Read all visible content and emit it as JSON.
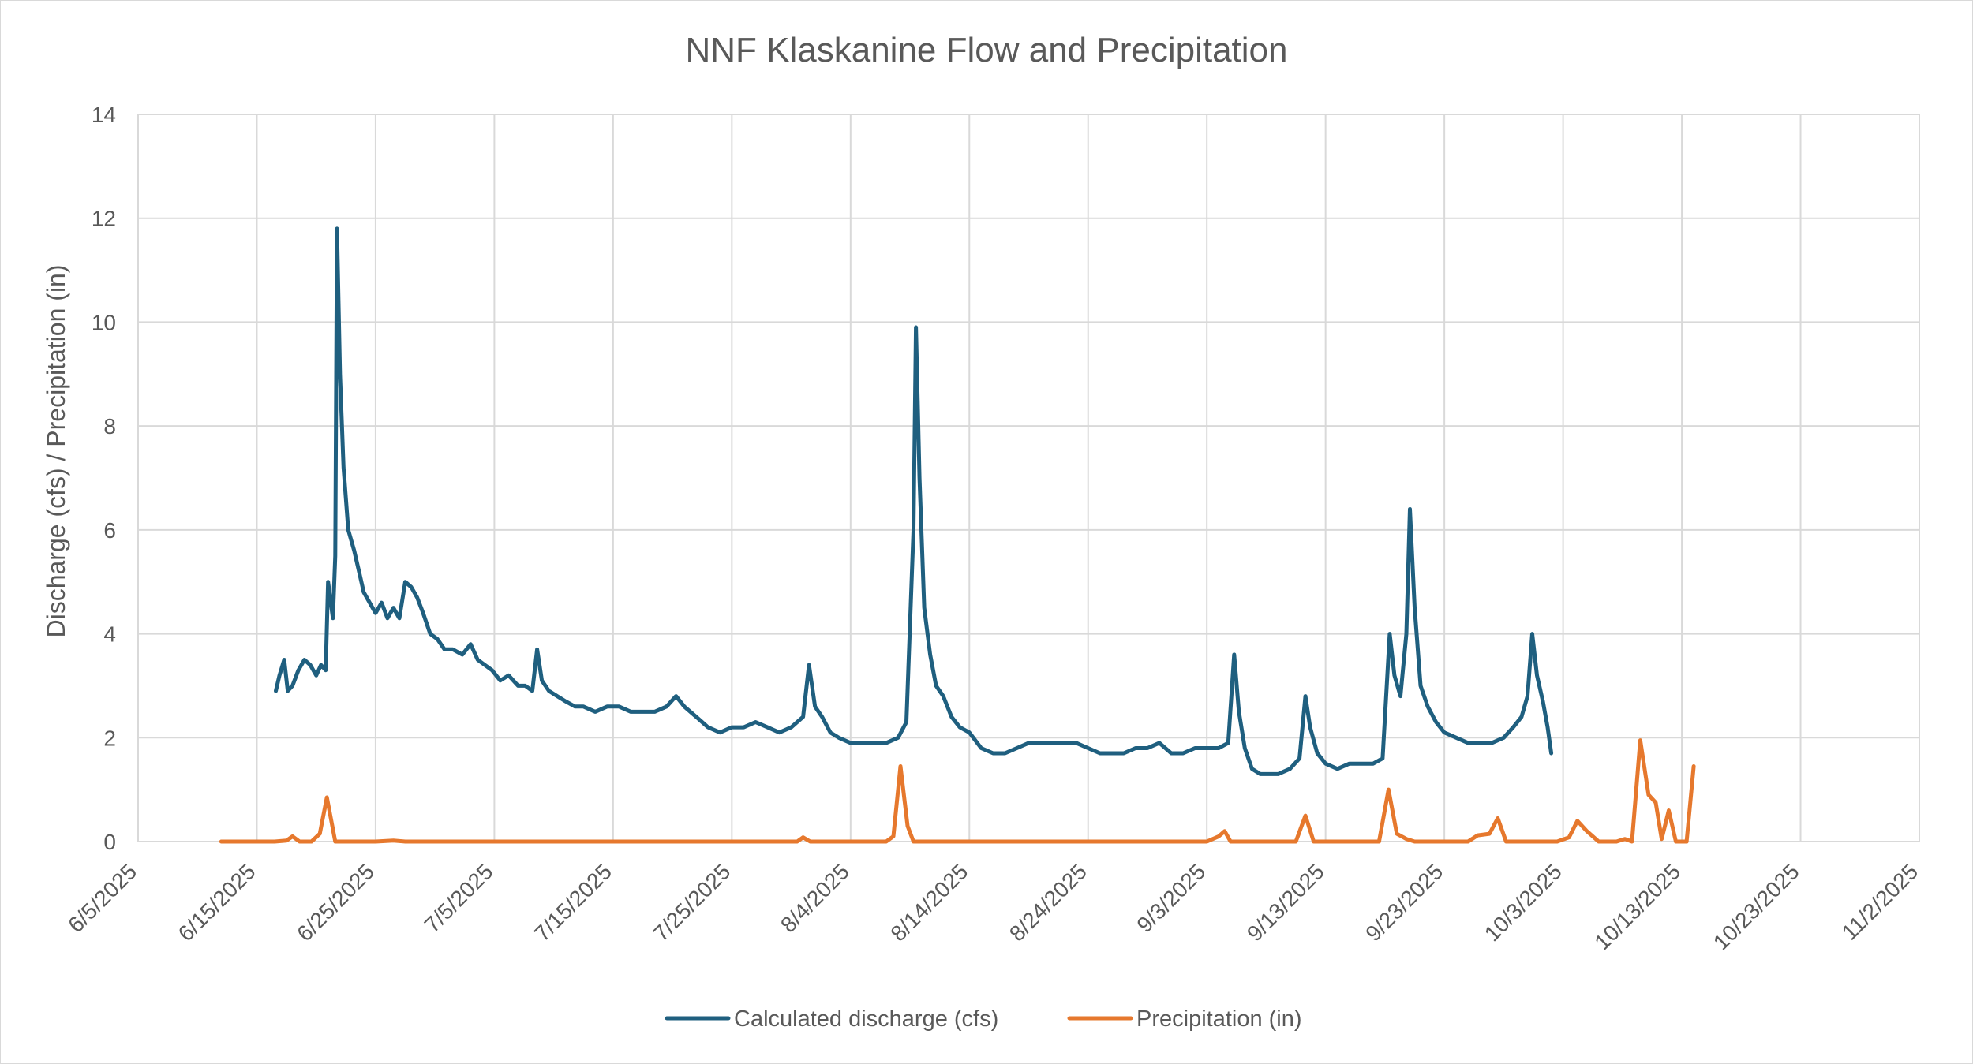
{
  "chart_data": {
    "type": "line",
    "title": "NNF Klaskanine Flow and Precipitation",
    "xlabel": "",
    "ylabel": "Discharge (cfs) / Precipitation (in)",
    "ylim": [
      0,
      14
    ],
    "yticks": [
      "0",
      "2",
      "4",
      "6",
      "8",
      "10",
      "12",
      "14"
    ],
    "x_range_days": [
      0,
      150
    ],
    "x_tick_labels": [
      "6/5/2025",
      "6/15/2025",
      "6/25/2025",
      "7/5/2025",
      "7/15/2025",
      "7/25/2025",
      "8/4/2025",
      "8/14/2025",
      "8/24/2025",
      "9/3/2025",
      "9/13/2025",
      "9/23/2025",
      "10/3/2025",
      "10/13/2025",
      "10/23/2025",
      "11/2/2025"
    ],
    "legend_position": "bottom",
    "grid": true,
    "series": [
      {
        "name": "Calculated discharge (cfs)",
        "color": "#1f5f7f",
        "x_units": "days since 6/5/2025",
        "points": [
          [
            11.6,
            2.9
          ],
          [
            11.9,
            3.2
          ],
          [
            12.3,
            3.5
          ],
          [
            12.6,
            2.9
          ],
          [
            13.0,
            3.0
          ],
          [
            13.5,
            3.3
          ],
          [
            14.0,
            3.5
          ],
          [
            14.5,
            3.4
          ],
          [
            15.0,
            3.2
          ],
          [
            15.4,
            3.4
          ],
          [
            15.8,
            3.3
          ],
          [
            16.0,
            5.0
          ],
          [
            16.4,
            4.3
          ],
          [
            16.6,
            5.5
          ],
          [
            16.75,
            11.8
          ],
          [
            17.0,
            9.0
          ],
          [
            17.3,
            7.2
          ],
          [
            17.7,
            6.0
          ],
          [
            18.2,
            5.6
          ],
          [
            18.6,
            5.2
          ],
          [
            19.0,
            4.8
          ],
          [
            19.5,
            4.6
          ],
          [
            20.0,
            4.4
          ],
          [
            20.5,
            4.6
          ],
          [
            21.0,
            4.3
          ],
          [
            21.5,
            4.5
          ],
          [
            22.0,
            4.3
          ],
          [
            22.5,
            5.0
          ],
          [
            23.0,
            4.9
          ],
          [
            23.5,
            4.7
          ],
          [
            24.0,
            4.4
          ],
          [
            24.6,
            4.0
          ],
          [
            25.2,
            3.9
          ],
          [
            25.8,
            3.7
          ],
          [
            26.5,
            3.7
          ],
          [
            27.3,
            3.6
          ],
          [
            28.0,
            3.8
          ],
          [
            28.6,
            3.5
          ],
          [
            29.2,
            3.4
          ],
          [
            29.8,
            3.3
          ],
          [
            30.5,
            3.1
          ],
          [
            31.2,
            3.2
          ],
          [
            32.0,
            3.0
          ],
          [
            32.6,
            3.0
          ],
          [
            33.2,
            2.9
          ],
          [
            33.6,
            3.7
          ],
          [
            34.0,
            3.1
          ],
          [
            34.6,
            2.9
          ],
          [
            35.3,
            2.8
          ],
          [
            36.0,
            2.7
          ],
          [
            36.8,
            2.6
          ],
          [
            37.5,
            2.6
          ],
          [
            38.5,
            2.5
          ],
          [
            39.5,
            2.6
          ],
          [
            40.5,
            2.6
          ],
          [
            41.5,
            2.5
          ],
          [
            42.5,
            2.5
          ],
          [
            43.5,
            2.5
          ],
          [
            44.5,
            2.6
          ],
          [
            45.3,
            2.8
          ],
          [
            46.0,
            2.6
          ],
          [
            47.0,
            2.4
          ],
          [
            48.0,
            2.2
          ],
          [
            49.0,
            2.1
          ],
          [
            50.0,
            2.2
          ],
          [
            51.0,
            2.2
          ],
          [
            52.0,
            2.3
          ],
          [
            53.0,
            2.2
          ],
          [
            54.0,
            2.1
          ],
          [
            55.0,
            2.2
          ],
          [
            56.0,
            2.4
          ],
          [
            56.5,
            3.4
          ],
          [
            57.0,
            2.6
          ],
          [
            57.6,
            2.4
          ],
          [
            58.3,
            2.1
          ],
          [
            59.0,
            2.0
          ],
          [
            60.0,
            1.9
          ],
          [
            61.0,
            1.9
          ],
          [
            62.0,
            1.9
          ],
          [
            63.0,
            1.9
          ],
          [
            64.0,
            2.0
          ],
          [
            64.7,
            2.3
          ],
          [
            65.3,
            6.0
          ],
          [
            65.5,
            9.9
          ],
          [
            65.8,
            7.0
          ],
          [
            66.2,
            4.5
          ],
          [
            66.7,
            3.6
          ],
          [
            67.2,
            3.0
          ],
          [
            67.8,
            2.8
          ],
          [
            68.5,
            2.4
          ],
          [
            69.2,
            2.2
          ],
          [
            70.0,
            2.1
          ],
          [
            71.0,
            1.8
          ],
          [
            72.0,
            1.7
          ],
          [
            73.0,
            1.7
          ],
          [
            74.0,
            1.8
          ],
          [
            75.0,
            1.9
          ],
          [
            76.0,
            1.9
          ],
          [
            77.0,
            1.9
          ],
          [
            78.0,
            1.9
          ],
          [
            79.0,
            1.9
          ],
          [
            80.0,
            1.8
          ],
          [
            81.0,
            1.7
          ],
          [
            82.0,
            1.7
          ],
          [
            83.0,
            1.7
          ],
          [
            84.0,
            1.8
          ],
          [
            85.0,
            1.8
          ],
          [
            86.0,
            1.9
          ],
          [
            87.0,
            1.7
          ],
          [
            88.0,
            1.7
          ],
          [
            89.0,
            1.8
          ],
          [
            90.0,
            1.8
          ],
          [
            91.0,
            1.8
          ],
          [
            91.8,
            1.9
          ],
          [
            92.3,
            3.6
          ],
          [
            92.7,
            2.5
          ],
          [
            93.2,
            1.8
          ],
          [
            93.8,
            1.4
          ],
          [
            94.5,
            1.3
          ],
          [
            95.3,
            1.3
          ],
          [
            96.0,
            1.3
          ],
          [
            97.0,
            1.4
          ],
          [
            97.8,
            1.6
          ],
          [
            98.3,
            2.8
          ],
          [
            98.7,
            2.2
          ],
          [
            99.3,
            1.7
          ],
          [
            100.0,
            1.5
          ],
          [
            101.0,
            1.4
          ],
          [
            102.0,
            1.5
          ],
          [
            103.0,
            1.5
          ],
          [
            104.0,
            1.5
          ],
          [
            104.8,
            1.6
          ],
          [
            105.4,
            4.0
          ],
          [
            105.8,
            3.2
          ],
          [
            106.3,
            2.8
          ],
          [
            106.8,
            4.0
          ],
          [
            107.1,
            6.4
          ],
          [
            107.5,
            4.5
          ],
          [
            108.0,
            3.0
          ],
          [
            108.6,
            2.6
          ],
          [
            109.3,
            2.3
          ],
          [
            110.0,
            2.1
          ],
          [
            111.0,
            2.0
          ],
          [
            112.0,
            1.9
          ],
          [
            113.0,
            1.9
          ],
          [
            114.0,
            1.9
          ],
          [
            115.0,
            2.0
          ],
          [
            115.8,
            2.2
          ],
          [
            116.5,
            2.4
          ],
          [
            117.0,
            2.8
          ],
          [
            117.4,
            4.0
          ],
          [
            117.8,
            3.2
          ],
          [
            118.3,
            2.7
          ],
          [
            118.7,
            2.2
          ],
          [
            119.0,
            1.7
          ]
        ]
      },
      {
        "name": "Precipitation (in)",
        "color": "#e6782d",
        "x_units": "days since 6/5/2025",
        "points": [
          [
            7.0,
            0.0
          ],
          [
            10.5,
            0.0
          ],
          [
            11.5,
            0.0
          ],
          [
            12.5,
            0.02
          ],
          [
            13.0,
            0.1
          ],
          [
            13.6,
            0.0
          ],
          [
            14.6,
            0.0
          ],
          [
            15.3,
            0.15
          ],
          [
            15.9,
            0.85
          ],
          [
            16.6,
            0.0
          ],
          [
            17.5,
            0.0
          ],
          [
            20.0,
            0.0
          ],
          [
            21.5,
            0.02
          ],
          [
            22.5,
            0.0
          ],
          [
            30.0,
            0.0
          ],
          [
            40.0,
            0.0
          ],
          [
            50.0,
            0.0
          ],
          [
            55.5,
            0.0
          ],
          [
            56.0,
            0.08
          ],
          [
            56.6,
            0.0
          ],
          [
            63.0,
            0.0
          ],
          [
            63.6,
            0.1
          ],
          [
            64.2,
            1.45
          ],
          [
            64.8,
            0.3
          ],
          [
            65.3,
            0.0
          ],
          [
            70.0,
            0.0
          ],
          [
            80.0,
            0.0
          ],
          [
            90.0,
            0.0
          ],
          [
            91.0,
            0.1
          ],
          [
            91.5,
            0.2
          ],
          [
            92.0,
            0.0
          ],
          [
            97.5,
            0.0
          ],
          [
            98.3,
            0.5
          ],
          [
            99.0,
            0.0
          ],
          [
            104.5,
            0.0
          ],
          [
            105.3,
            1.0
          ],
          [
            106.0,
            0.15
          ],
          [
            106.8,
            0.05
          ],
          [
            107.5,
            0.0
          ],
          [
            112.0,
            0.0
          ],
          [
            112.8,
            0.12
          ],
          [
            113.8,
            0.15
          ],
          [
            114.5,
            0.45
          ],
          [
            115.2,
            0.0
          ],
          [
            117.0,
            0.0
          ],
          [
            119.5,
            0.0
          ],
          [
            120.5,
            0.08
          ],
          [
            121.2,
            0.4
          ],
          [
            122.0,
            0.2
          ],
          [
            123.0,
            0.0
          ],
          [
            124.5,
            0.0
          ],
          [
            125.2,
            0.05
          ],
          [
            125.8,
            0.0
          ],
          [
            126.5,
            1.95
          ],
          [
            127.2,
            0.9
          ],
          [
            127.8,
            0.75
          ],
          [
            128.3,
            0.05
          ],
          [
            128.9,
            0.6
          ],
          [
            129.5,
            0.0
          ],
          [
            130.4,
            0.0
          ],
          [
            131.0,
            1.45
          ]
        ]
      }
    ]
  }
}
